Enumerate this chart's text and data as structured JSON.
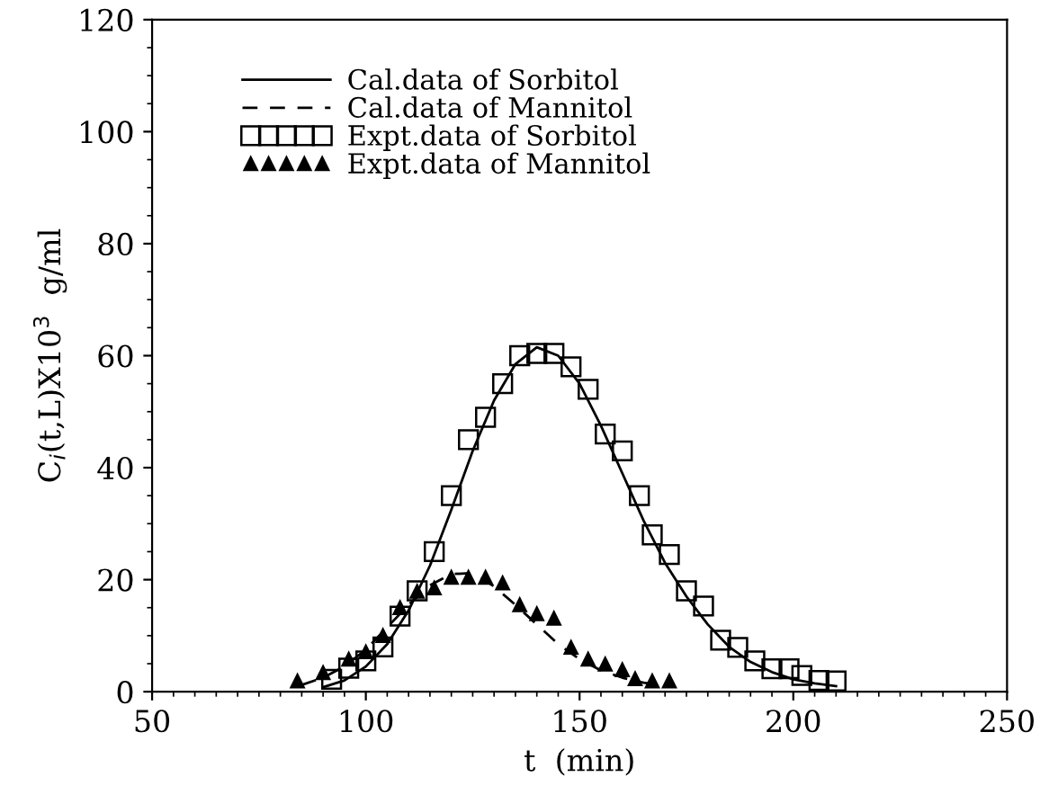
{
  "chart_data": {
    "type": "line",
    "xlabel": "t  (min)",
    "ylabel": "C$_{i}$(t,L)X10$^{3}$  g/ml",
    "xlim": [
      50,
      250
    ],
    "xticks": [
      50,
      100,
      150,
      200,
      250
    ],
    "ylim": [
      0,
      120
    ],
    "yticks": [
      0,
      20,
      40,
      60,
      80,
      100,
      120
    ],
    "grid": false,
    "legend": "top left",
    "series": [
      {
        "name": "Cal.data of Sorbitol",
        "line_style": "solid",
        "marker": "none",
        "color": "#000000",
        "x": [
          90,
          95,
          100,
          105,
          110,
          115,
          120,
          125,
          130,
          135,
          140,
          145,
          150,
          155,
          160,
          165,
          170,
          175,
          180,
          185,
          190,
          195,
          200,
          205,
          210
        ],
        "values": [
          0.8,
          2,
          4.5,
          8.5,
          14.5,
          22.5,
          32.5,
          43,
          52,
          58.5,
          61.5,
          60,
          55,
          47.5,
          39,
          30.5,
          23,
          17,
          12,
          8,
          5.3,
          3.5,
          2.2,
          1.5,
          1
        ]
      },
      {
        "name": "Cal.data of Mannitol",
        "line_style": "dashed",
        "marker": "none",
        "color": "#000000",
        "x": [
          85,
          90,
          95,
          100,
          105,
          110,
          115,
          120,
          125,
          130,
          135,
          140,
          145,
          150,
          155,
          160,
          165,
          170
        ],
        "values": [
          1.2,
          2.5,
          4.5,
          7.5,
          11.5,
          15.5,
          19,
          21,
          21.2,
          18.8,
          15.5,
          12,
          8.5,
          5.8,
          3.8,
          2.5,
          1.6,
          1
        ]
      },
      {
        "name": "Expt.data of Sorbitol",
        "type": "scatter",
        "marker": "square",
        "color": "#000000",
        "x": [
          92,
          96,
          100,
          104,
          108,
          112,
          116,
          120,
          124,
          128,
          132,
          136,
          140,
          144,
          148,
          152,
          156,
          160,
          164,
          167,
          171,
          175,
          179,
          183,
          187,
          191,
          195,
          199,
          202,
          206,
          210
        ],
        "values": [
          2.2,
          4.2,
          5.5,
          8,
          13.5,
          18,
          25,
          35,
          45,
          49,
          55,
          60,
          60.4,
          60.4,
          58,
          54,
          46,
          43,
          35,
          28,
          24.5,
          18,
          15.3,
          9.2,
          7.9,
          5.5,
          4.1,
          4.1,
          2.9,
          2,
          1.9
        ]
      },
      {
        "name": "Expt.data of Mannitol",
        "type": "scatter",
        "marker": "triangle",
        "color": "#000000",
        "x": [
          84,
          90,
          96,
          100,
          104,
          108,
          112,
          116,
          120,
          124,
          128,
          132,
          136,
          140,
          144,
          148,
          152,
          156,
          160,
          163,
          167,
          171
        ],
        "values": [
          1.9,
          3.4,
          5.8,
          7.1,
          10,
          15,
          17.9,
          18.5,
          20.4,
          20.4,
          20.4,
          19.4,
          15.5,
          13.9,
          13.1,
          7.9,
          5.8,
          4.9,
          3.9,
          2.3,
          1.9,
          1.9
        ]
      }
    ]
  }
}
